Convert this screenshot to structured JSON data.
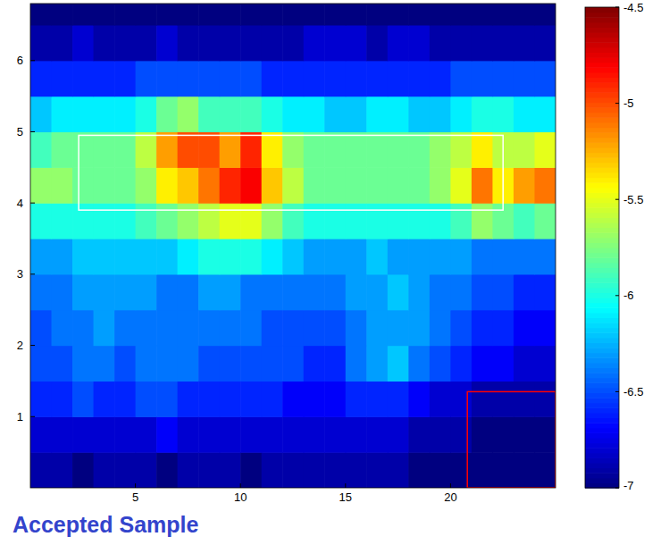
{
  "chart_data": {
    "type": "heatmap",
    "annotation": "Accepted Sample",
    "x_edges": [
      0,
      1,
      2,
      3,
      4,
      5,
      6,
      7,
      8,
      9,
      10,
      11,
      12,
      13,
      14,
      15,
      16,
      17,
      18,
      19,
      20,
      21,
      22,
      23,
      24,
      25
    ],
    "y_edges": [
      0,
      0.5,
      1,
      1.5,
      2,
      2.5,
      3,
      3.5,
      4,
      4.5,
      5,
      5.5,
      6,
      6.5,
      7
    ],
    "z": [
      [
        -6.9,
        -6.9,
        -7,
        -6.9,
        -6.9,
        -6.9,
        -7,
        -6.9,
        -6.9,
        -6.9,
        -7,
        -6.9,
        -6.9,
        -6.9,
        -6.9,
        -6.9,
        -6.9,
        -6.9,
        -7,
        -7,
        -7,
        -7,
        -7,
        -7,
        -7
      ],
      [
        -6.8,
        -6.8,
        -6.8,
        -6.8,
        -6.8,
        -6.8,
        -6.7,
        -6.8,
        -6.8,
        -6.8,
        -6.8,
        -6.8,
        -6.8,
        -6.8,
        -6.8,
        -6.8,
        -6.8,
        -6.8,
        -6.9,
        -6.9,
        -6.9,
        -7,
        -7,
        -7,
        -7
      ],
      [
        -6.6,
        -6.6,
        -6.5,
        -6.6,
        -6.6,
        -6.5,
        -6.5,
        -6.6,
        -6.6,
        -6.6,
        -6.6,
        -6.6,
        -6.7,
        -6.7,
        -6.7,
        -6.6,
        -6.6,
        -6.6,
        -6.7,
        -6.8,
        -6.8,
        -6.9,
        -6.9,
        -6.9,
        -6.9
      ],
      [
        -6.5,
        -6.5,
        -6.4,
        -6.4,
        -6.5,
        -6.4,
        -6.4,
        -6.4,
        -6.5,
        -6.5,
        -6.5,
        -6.5,
        -6.5,
        -6.6,
        -6.6,
        -6.4,
        -6.3,
        -6.2,
        -6.4,
        -6.5,
        -6.6,
        -6.7,
        -6.7,
        -6.8,
        -6.8
      ],
      [
        -6.5,
        -6.4,
        -6.4,
        -6.3,
        -6.4,
        -6.4,
        -6.4,
        -6.4,
        -6.4,
        -6.4,
        -6.4,
        -6.5,
        -6.5,
        -6.5,
        -6.5,
        -6.4,
        -6.3,
        -6.3,
        -6.3,
        -6.4,
        -6.5,
        -6.6,
        -6.6,
        -6.7,
        -6.7
      ],
      [
        -6.4,
        -6.4,
        -6.3,
        -6.3,
        -6.3,
        -6.3,
        -6.4,
        -6.4,
        -6.3,
        -6.3,
        -6.4,
        -6.4,
        -6.4,
        -6.4,
        -6.4,
        -6.3,
        -6.3,
        -6.2,
        -6.3,
        -6.4,
        -6.4,
        -6.5,
        -6.5,
        -6.6,
        -6.6
      ],
      [
        -6.3,
        -6.3,
        -6.2,
        -6.2,
        -6.2,
        -6.2,
        -6.2,
        -6.1,
        -6.0,
        -6.0,
        -6.0,
        -6.1,
        -6.2,
        -6.3,
        -6.3,
        -6.3,
        -6.2,
        -6.3,
        -6.3,
        -6.3,
        -6.3,
        -6.4,
        -6.4,
        -6.4,
        -6.4
      ],
      [
        -6.0,
        -6.0,
        -6.0,
        -6.0,
        -6.0,
        -5.9,
        -5.8,
        -5.7,
        -5.6,
        -5.5,
        -5.5,
        -5.7,
        -5.9,
        -6.0,
        -6.0,
        -6.0,
        -6.0,
        -6.0,
        -6.0,
        -6.0,
        -5.9,
        -5.7,
        -5.8,
        -5.9,
        -5.8
      ],
      [
        -5.7,
        -5.7,
        -5.8,
        -5.8,
        -5.8,
        -5.7,
        -5.4,
        -5.3,
        -5.1,
        -4.9,
        -4.8,
        -5.3,
        -5.6,
        -5.8,
        -5.8,
        -5.8,
        -5.8,
        -5.8,
        -5.8,
        -5.7,
        -5.5,
        -5.1,
        -5.4,
        -5.2,
        -5.1
      ],
      [
        -5.9,
        -5.8,
        -5.8,
        -5.8,
        -5.8,
        -5.6,
        -5.2,
        -5.0,
        -5.0,
        -5.2,
        -4.9,
        -5.4,
        -5.7,
        -5.8,
        -5.8,
        -5.8,
        -5.8,
        -5.8,
        -5.8,
        -5.7,
        -5.6,
        -5.4,
        -5.6,
        -5.6,
        -5.5
      ],
      [
        -6.2,
        -6.1,
        -6.1,
        -6.1,
        -6.1,
        -6.0,
        -5.8,
        -5.7,
        -5.9,
        -5.9,
        -5.9,
        -6.0,
        -6.1,
        -6.1,
        -6.2,
        -6.2,
        -6.1,
        -6.1,
        -6.2,
        -6.2,
        -6.1,
        -6.0,
        -6.0,
        -6.1,
        -6.1
      ],
      [
        -6.6,
        -6.6,
        -6.6,
        -6.6,
        -6.6,
        -6.5,
        -6.5,
        -6.5,
        -6.5,
        -6.5,
        -6.5,
        -6.6,
        -6.6,
        -6.6,
        -6.6,
        -6.6,
        -6.6,
        -6.6,
        -6.6,
        -6.6,
        -6.5,
        -6.5,
        -6.5,
        -6.5,
        -6.5
      ],
      [
        -6.9,
        -6.9,
        -6.8,
        -6.9,
        -6.9,
        -6.9,
        -6.8,
        -6.9,
        -6.9,
        -6.9,
        -6.9,
        -6.9,
        -6.9,
        -6.8,
        -6.8,
        -6.8,
        -6.9,
        -6.8,
        -6.8,
        -6.9,
        -6.9,
        -6.9,
        -6.9,
        -6.9,
        -6.9
      ],
      [
        -7,
        -7,
        -7,
        -7,
        -7,
        -7,
        -7,
        -7,
        -7,
        -7,
        -7,
        -7,
        -7,
        -7,
        -7,
        -7,
        -7,
        -7,
        -7,
        -7,
        -7,
        -7,
        -7,
        -7,
        -7
      ]
    ],
    "xlim": [
      0,
      25
    ],
    "ylim": [
      0,
      6.8
    ],
    "xticks": [
      5,
      10,
      15,
      20
    ],
    "yticks": [
      1,
      2,
      3,
      4,
      5,
      6
    ],
    "colorbar_range": [
      -7,
      -4.5
    ],
    "colorbar_ticks": [
      -4.5,
      -5,
      -5.5,
      -6,
      -6.5,
      -7
    ],
    "regions": [
      {
        "x": [
          2.3,
          22.5
        ],
        "y": [
          3.9,
          4.95
        ],
        "color": "#ffffff"
      },
      {
        "x": [
          20.8,
          25
        ],
        "y": [
          0,
          1.35
        ],
        "color": "#ff0000"
      }
    ]
  }
}
